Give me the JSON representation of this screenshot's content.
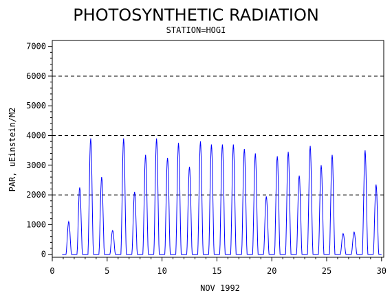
{
  "chart_data": {
    "type": "line",
    "title": "PHOTOSYNTHETIC RADIATION",
    "subtitle": "STATION=HOGI",
    "xlabel": "NOV 1992",
    "ylabel": "PAR, uEinstein/M2",
    "xlim": [
      0,
      30.2
    ],
    "ylim": [
      -100,
      7200
    ],
    "xticks": [
      0,
      5,
      10,
      15,
      20,
      25,
      30
    ],
    "yticks": [
      0,
      1000,
      2000,
      3000,
      4000,
      5000,
      6000,
      7000
    ],
    "reference_lines": [
      2000,
      4000,
      6000
    ],
    "grid": false,
    "series": [
      {
        "color": "#0000ff",
        "daily_peaks": [
          {
            "day": 1,
            "peak": 1100
          },
          {
            "day": 2,
            "peak": 2250
          },
          {
            "day": 3,
            "peak": 3900
          },
          {
            "day": 4,
            "peak": 2600
          },
          {
            "day": 5,
            "peak": 800
          },
          {
            "day": 6,
            "peak": 3900
          },
          {
            "day": 7,
            "peak": 2100
          },
          {
            "day": 8,
            "peak": 3350
          },
          {
            "day": 9,
            "peak": 3900
          },
          {
            "day": 10,
            "peak": 3250
          },
          {
            "day": 11,
            "peak": 3750
          },
          {
            "day": 12,
            "peak": 2950
          },
          {
            "day": 13,
            "peak": 3800
          },
          {
            "day": 14,
            "peak": 3700
          },
          {
            "day": 15,
            "peak": 3700
          },
          {
            "day": 16,
            "peak": 3700
          },
          {
            "day": 17,
            "peak": 3550
          },
          {
            "day": 18,
            "peak": 3400
          },
          {
            "day": 19,
            "peak": 1950
          },
          {
            "day": 20,
            "peak": 3300
          },
          {
            "day": 21,
            "peak": 3450
          },
          {
            "day": 22,
            "peak": 2650
          },
          {
            "day": 23,
            "peak": 3650
          },
          {
            "day": 24,
            "peak": 3000
          },
          {
            "day": 25,
            "peak": 3350
          },
          {
            "day": 26,
            "peak": 700
          },
          {
            "day": 27,
            "peak": 750
          },
          {
            "day": 28,
            "peak": 3500
          },
          {
            "day": 29,
            "peak": 2350
          }
        ]
      }
    ]
  }
}
